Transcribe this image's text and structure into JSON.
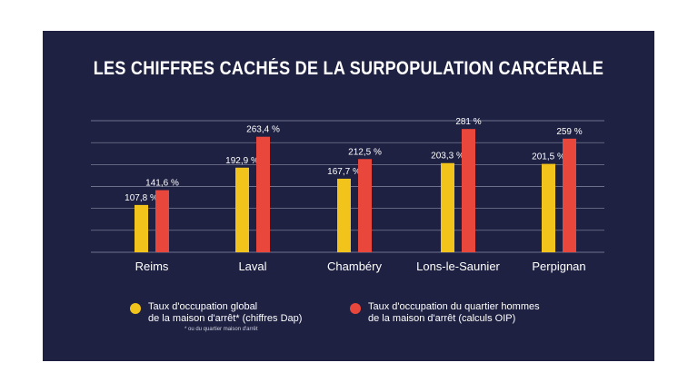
{
  "title": "LES CHIFFRES CACHÉS DE LA SURPOPULATION CARCÉRALE",
  "colors": {
    "background": "#1e2142",
    "series1": "#f2c31a",
    "series2": "#e9473b",
    "grid": "#8a8da6",
    "text": "#ffffff"
  },
  "chart_data": {
    "type": "bar",
    "categories": [
      "Reims",
      "Laval",
      "Chambéry",
      "Lons-le-Saunier",
      "Perpignan"
    ],
    "series": [
      {
        "name": "Taux d'occupation global de la maison d'arrêt* (chiffres Dap)",
        "values": [
          107.8,
          192.9,
          167.7,
          203.3,
          201.5
        ],
        "labels": [
          "107,8 %",
          "192,9 %",
          "167,7 %",
          "203,3 %",
          "201,5  %"
        ]
      },
      {
        "name": "Taux d'occupation du quartier hommes de la maison d'arrêt (calculs OIP)",
        "values": [
          141.6,
          263.4,
          212.5,
          281,
          259
        ],
        "labels": [
          "141,6 %",
          "263,4 %",
          "212,5 %",
          "281 %",
          "259  %"
        ]
      }
    ],
    "ylim": [
      0,
      300
    ],
    "grid": true,
    "legend_position": "bottom"
  },
  "legend": {
    "item1": "Taux d'occupation global\nde la maison d'arrêt* (chiffres Dap)",
    "item2": "Taux d'occupation du quartier hommes\nde la maison d'arrêt (calculs OIP)",
    "footnote": "* ou du quartier maison d'arrêt"
  }
}
